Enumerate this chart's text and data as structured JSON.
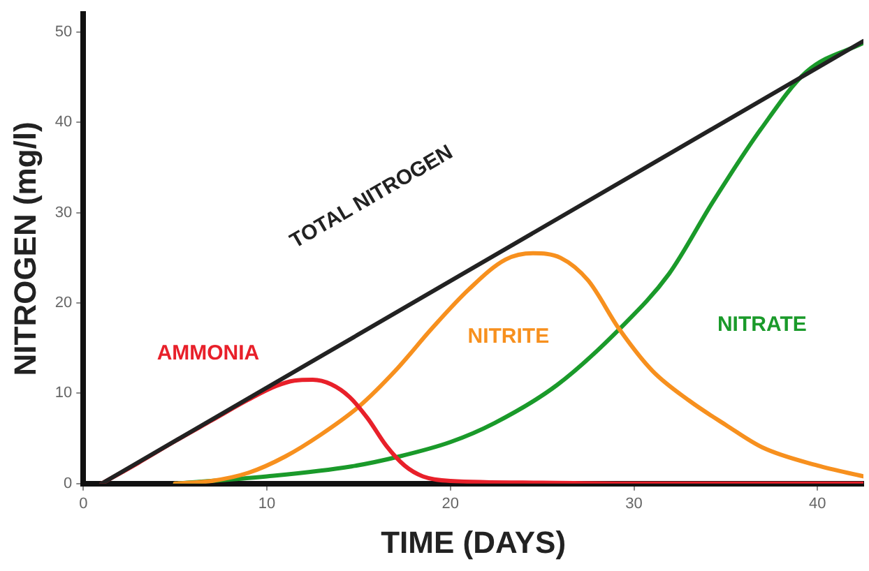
{
  "chart_data": {
    "type": "line",
    "xlabel": "TIME (DAYS)",
    "ylabel": "NITROGEN (mg/l)",
    "xlim": [
      0,
      42.5
    ],
    "ylim": [
      0,
      52
    ],
    "xticks": [
      0,
      10,
      20,
      30,
      40
    ],
    "yticks": [
      0,
      10,
      20,
      30,
      40,
      50
    ],
    "grid": false,
    "legend": false,
    "marker": "none",
    "line_style": "solid",
    "series": [
      {
        "name": "TOTAL NITROGEN",
        "color": "#222222",
        "x": [
          1,
          42.5
        ],
        "values": [
          0,
          49
        ]
      },
      {
        "name": "AMMONIA",
        "color": "#e8202a",
        "x": [
          1,
          3,
          5,
          7,
          9,
          10.5,
          11.5,
          12.5,
          13.5,
          14.5,
          15.5,
          16.5,
          17.5,
          18.5,
          20,
          25,
          30,
          42.5
        ],
        "values": [
          0,
          2.3,
          4.7,
          7,
          9.3,
          10.8,
          11.4,
          11.5,
          11,
          9.6,
          7.2,
          4.2,
          2,
          0.8,
          0.3,
          0.1,
          0,
          0
        ]
      },
      {
        "name": "NITRITE",
        "color": "#f7901e",
        "x": [
          5,
          7,
          9,
          11,
          13,
          15,
          17,
          19,
          21,
          23,
          24.5,
          26,
          27.5,
          29.2,
          31,
          33,
          35,
          37,
          40,
          42.5
        ],
        "values": [
          0,
          0.3,
          1.2,
          3,
          5.5,
          8.5,
          12.5,
          17.2,
          21.5,
          24.8,
          25.5,
          25,
          22.5,
          17.1,
          12.5,
          9.2,
          6.5,
          4,
          2,
          0.8
        ]
      },
      {
        "name": "NITRATE",
        "color": "#1a9a2a",
        "x": [
          5,
          10,
          14.6,
          17.2,
          20,
          22.4,
          25.8,
          29.2,
          31.9,
          34.3,
          36.9,
          39.4,
          42.5
        ],
        "values": [
          0,
          0.8,
          1.9,
          3,
          4.6,
          6.7,
          10.9,
          17.1,
          23.2,
          31.2,
          39.2,
          45.6,
          48.8
        ]
      }
    ]
  }
}
